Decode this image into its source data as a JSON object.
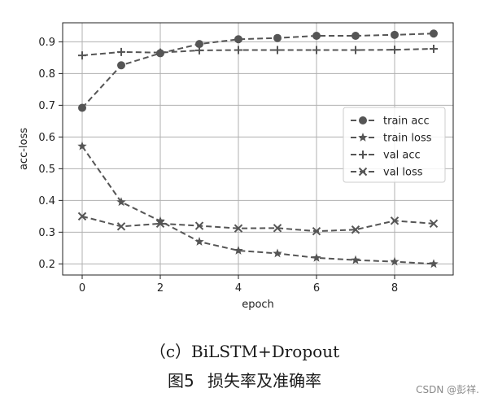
{
  "chart_data": {
    "type": "line",
    "title": "",
    "xlabel": "epoch",
    "ylabel": "acc-loss",
    "xlim": [
      -0.5,
      9.5
    ],
    "ylim": [
      0.165,
      0.96
    ],
    "xticks": [
      0,
      2,
      4,
      6,
      8
    ],
    "yticks": [
      0.2,
      0.3,
      0.4,
      0.5,
      0.6,
      0.7,
      0.8,
      0.9
    ],
    "grid": true,
    "legend_position": "center-right",
    "x": [
      0,
      1,
      2,
      3,
      4,
      5,
      6,
      7,
      8,
      9
    ],
    "series": [
      {
        "name": "train acc",
        "marker": "circle",
        "values": [
          0.692,
          0.826,
          0.864,
          0.893,
          0.908,
          0.912,
          0.919,
          0.919,
          0.922,
          0.926
        ]
      },
      {
        "name": "train loss",
        "marker": "star",
        "values": [
          0.571,
          0.395,
          0.335,
          0.27,
          0.242,
          0.233,
          0.219,
          0.212,
          0.207,
          0.2
        ]
      },
      {
        "name": "val acc",
        "marker": "plus",
        "values": [
          0.857,
          0.868,
          0.866,
          0.873,
          0.874,
          0.874,
          0.874,
          0.874,
          0.875,
          0.878
        ]
      },
      {
        "name": "val loss",
        "marker": "x",
        "values": [
          0.35,
          0.318,
          0.327,
          0.32,
          0.312,
          0.313,
          0.303,
          0.308,
          0.336,
          0.327
        ]
      }
    ],
    "line_color": "#555555",
    "grid_color": "#b0b0b0"
  },
  "caption": {
    "subtitle": "（c）BiLSTM+Dropout",
    "figure_title": "图5 损失率及准确率"
  },
  "watermark": "CSDN @彭祥."
}
